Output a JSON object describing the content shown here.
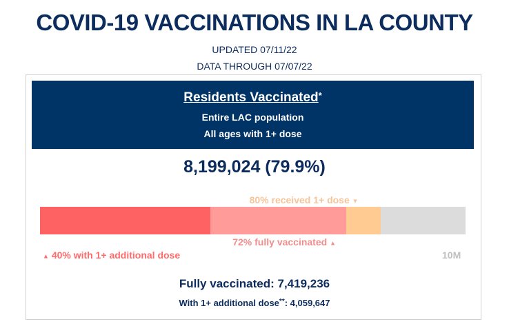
{
  "title": "COVID-19 VACCINATIONS IN LA COUNTY",
  "updated": "UPDATED 07/11/22",
  "data_through": "DATA THROUGH 07/07/22",
  "header": {
    "title": "Residents Vaccinated",
    "asterisk": "*",
    "line1": "Entire LAC population",
    "line2": "All ages with 1+ dose"
  },
  "total": "8,199,024 (79.9%)",
  "progress": {
    "scale_max_label": "10M",
    "additional_dose_fraction": 0.4,
    "fully_vaccinated_fraction": 0.72,
    "one_dose_fraction": 0.8,
    "label_one_dose": "80% received 1+ dose",
    "label_fully": "72% fully vaccinated",
    "label_additional": "40% with 1+ additional dose",
    "colors": {
      "additional": "#ff6262",
      "fully": "#ff9c9a",
      "one_dose": "#ffcb92",
      "remaining": "#dcdcdc",
      "label_one_dose": "#f6c499",
      "label_fully": "#f08d8d",
      "label_additional": "#ff6a6a",
      "label_scale": "#c0c0c0"
    }
  },
  "fully_vaccinated": "Fully vaccinated: 7,419,236",
  "additional_dose_prefix": "With 1+ additional dose",
  "additional_dose_stars": "**",
  "additional_dose_value": ": 4,059,647",
  "colors": {
    "navy": "#003366",
    "text_navy": "#0d2c5e"
  }
}
